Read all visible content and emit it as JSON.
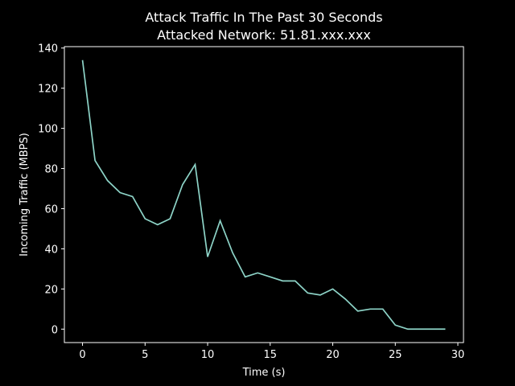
{
  "chart_data": {
    "type": "line",
    "title": "Attack Traffic In The Past 30 Seconds",
    "subtitle": "Attacked Network: 51.81.xxx.xxx",
    "x_label": "Time (s)",
    "y_label": "Incoming Traffic (MBPS)",
    "x": [
      0,
      1,
      2,
      3,
      4,
      5,
      6,
      7,
      8,
      9,
      10,
      11,
      12,
      13,
      14,
      15,
      16,
      17,
      18,
      19,
      20,
      21,
      22,
      23,
      24,
      25,
      26,
      27,
      28,
      29
    ],
    "series": [
      {
        "color": "#8dd3c7",
        "values": [
          134,
          84,
          74,
          68,
          66,
          55,
          52,
          55,
          72,
          82,
          36,
          54,
          38,
          26,
          28,
          26,
          24,
          24,
          18,
          17,
          20,
          15,
          9,
          10,
          10,
          2,
          0,
          0,
          0,
          0
        ]
      }
    ],
    "xlim": [
      -1.45,
      30.45
    ],
    "xticks": [
      0,
      5,
      10,
      15,
      20,
      25,
      30
    ],
    "ylim": [
      -6.7,
      140.7
    ],
    "yticks": [
      0,
      20,
      40,
      60,
      80,
      100,
      120,
      140
    ],
    "grid": false
  }
}
